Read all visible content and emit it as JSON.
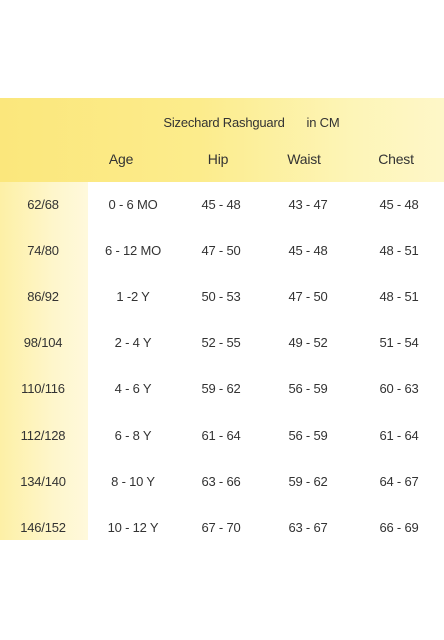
{
  "header": {
    "title": "Sizechard Rashguard",
    "unit": "in CM"
  },
  "columns": [
    "Age",
    "Hip",
    "Waist",
    "Chest"
  ],
  "rows": [
    {
      "size": "62/68",
      "age": "0 - 6 MO",
      "hip": "45 - 48",
      "waist": "43 - 47",
      "chest": "45 - 48"
    },
    {
      "size": "74/80",
      "age": "6 - 12 MO",
      "hip": "47 - 50",
      "waist": "45 - 48",
      "chest": "48 - 51"
    },
    {
      "size": "86/92",
      "age": "1 -2  Y",
      "hip": "50 - 53",
      "waist": "47 - 50",
      "chest": "48 - 51"
    },
    {
      "size": "98/104",
      "age": "2 - 4  Y",
      "hip": "52 - 55",
      "waist": "49 - 52",
      "chest": "51 - 54"
    },
    {
      "size": "110/116",
      "age": "4 - 6  Y",
      "hip": "59 - 62",
      "waist": "56 - 59",
      "chest": "60 - 63"
    },
    {
      "size": "112/128",
      "age": "6 - 8  Y",
      "hip": "61 - 64",
      "waist": "56 - 59",
      "chest": "61 - 64"
    },
    {
      "size": "134/140",
      "age": "8 - 10  Y",
      "hip": "63 - 66",
      "waist": "59 - 62",
      "chest": "64 - 67"
    },
    {
      "size": "146/152",
      "age": "10 - 12  Y",
      "hip": "67 - 70",
      "waist": "63 - 67",
      "chest": "66 - 69"
    }
  ],
  "colors": {
    "header_band": "#fbe77c",
    "left_column": "#fdf0a6",
    "text": "#333333"
  }
}
